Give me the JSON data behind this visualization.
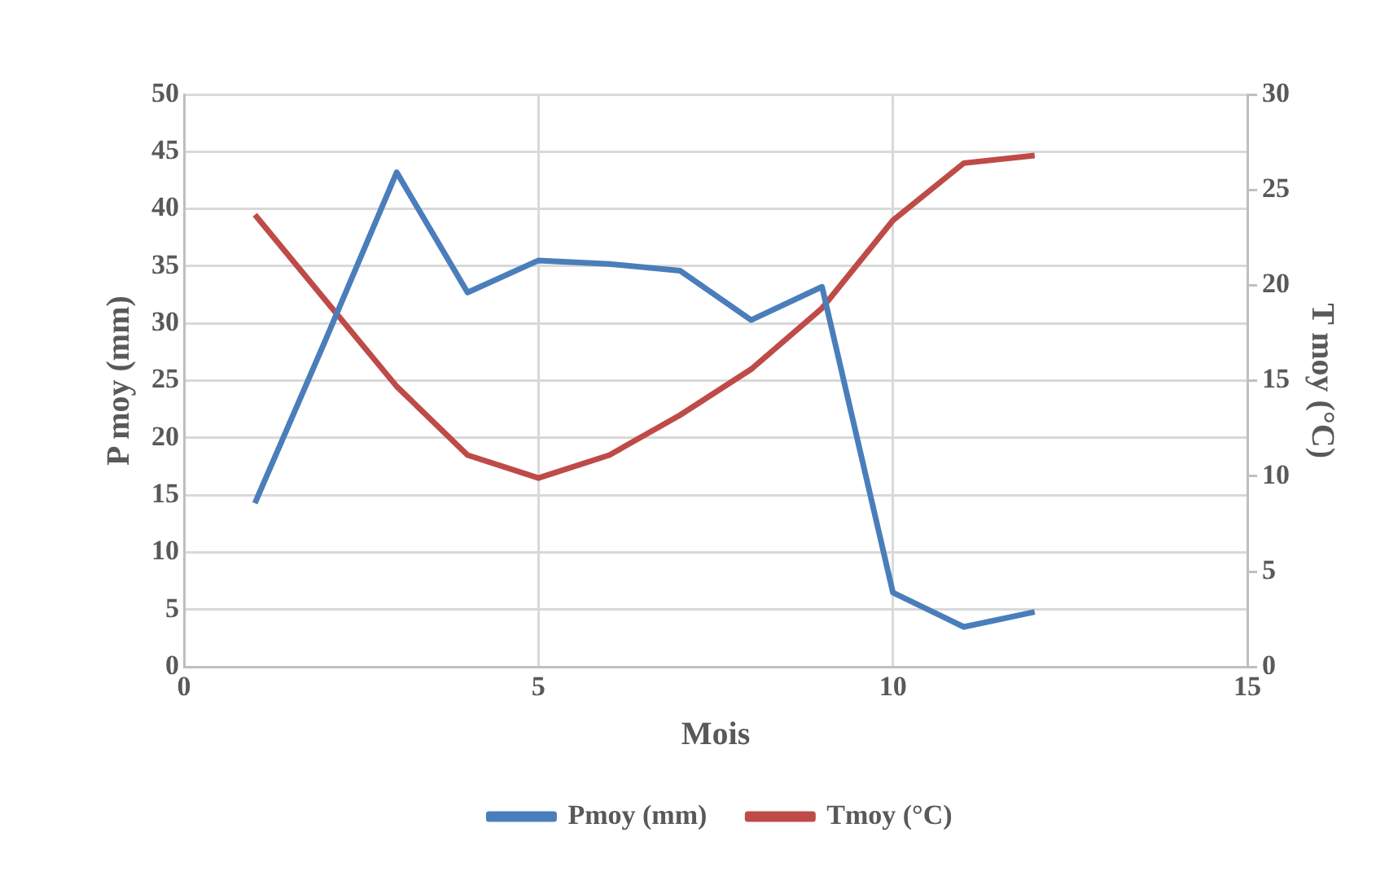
{
  "chart_data": {
    "type": "line",
    "xlabel": "Mois",
    "ylabel": "P moy (mm)",
    "y2label": "T moy (°C)",
    "x": [
      1,
      2,
      3,
      4,
      5,
      6,
      7,
      8,
      9,
      10,
      11,
      12
    ],
    "series": [
      {
        "name": "Pmoy (mm)",
        "color": "#4a7ebb",
        "values": [
          14.3,
          28.6,
          43.2,
          32.7,
          35.5,
          35.2,
          34.6,
          30.3,
          33.2,
          6.5,
          3.5,
          4.8
        ]
      },
      {
        "name": "Tmoy (°C)",
        "color": "#be4b48",
        "axis": "y2",
        "values": [
          23.7,
          19.2,
          14.7,
          11.1,
          9.9,
          11.1,
          13.2,
          15.6,
          18.8,
          23.4,
          26.4,
          26.8
        ]
      }
    ],
    "xlim": [
      0,
      15
    ],
    "xticks": [
      0,
      5,
      10,
      15
    ],
    "ylim": [
      0,
      50
    ],
    "yticks": [
      0,
      5,
      10,
      15,
      20,
      25,
      30,
      35,
      40,
      45,
      50
    ],
    "y2lim": [
      0,
      30
    ],
    "y2ticks": [
      0,
      5,
      10,
      15,
      20,
      25,
      30
    ],
    "grid": true,
    "legend": "bottom",
    "marker": "none",
    "line_style": "solid"
  }
}
